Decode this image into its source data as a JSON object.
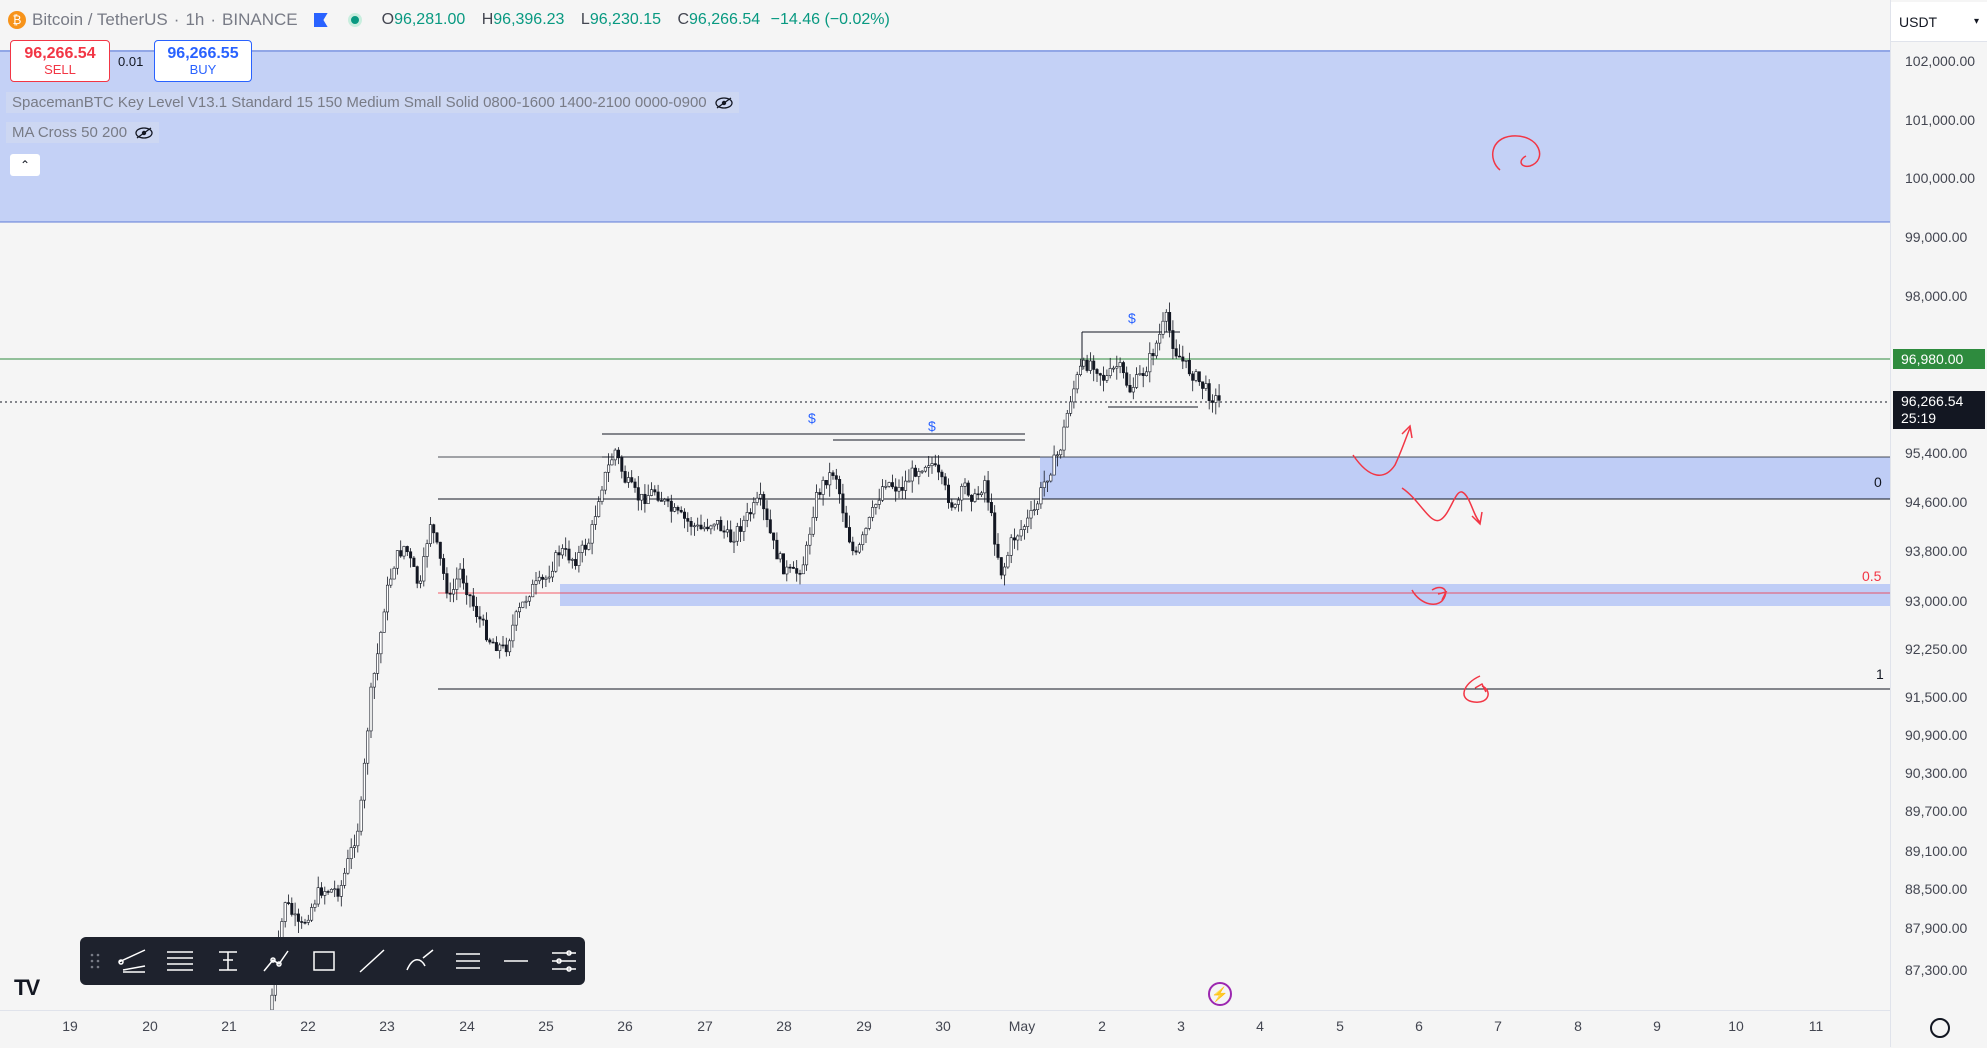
{
  "symbol": {
    "name": "Bitcoin / TetherUS",
    "interval": "1h",
    "exchange": "BINANCE",
    "icon": "bitcoin-icon"
  },
  "ohlc": {
    "o_label": "O",
    "o": "96,281.00",
    "h_label": "H",
    "h": "96,396.23",
    "l_label": "L",
    "l": "96,230.15",
    "c_label": "C",
    "c": "96,266.54",
    "change": "−14.46 (−0.02%)"
  },
  "trading": {
    "sell_price": "96,266.54",
    "sell_label": "SELL",
    "spread": "0.01",
    "buy_price": "96,266.55",
    "buy_label": "BUY"
  },
  "indicators": [
    {
      "label": "SpacemanBTC Key Level V13.1 Standard 15 150 Medium Small Solid 0800-1600 1400-2100 0000-0900"
    },
    {
      "label": "MA Cross 50 200"
    }
  ],
  "currency": "USDT",
  "price_ticks": [
    "102,000.00",
    "101,000.00",
    "100,000.00",
    "99,000.00",
    "98,000.00",
    "95,400.00",
    "94,600.00",
    "93,800.00",
    "93,000.00",
    "92,250.00",
    "91,500.00",
    "90,900.00",
    "90,300.00",
    "89,700.00",
    "89,100.00",
    "88,500.00",
    "87,900.00",
    "87,300.00"
  ],
  "price_tags": {
    "level": "96,980.00",
    "current": "96,266.54",
    "countdown": "25:19"
  },
  "time_ticks": [
    "19",
    "20",
    "21",
    "22",
    "23",
    "24",
    "25",
    "26",
    "27",
    "28",
    "29",
    "30",
    "May",
    "2",
    "3",
    "4",
    "5",
    "6",
    "7",
    "8",
    "9",
    "10",
    "11"
  ],
  "fib_labels": {
    "zero": "0",
    "half": "0.5",
    "one": "1"
  },
  "liquidity_marks": [
    "$",
    "$",
    "$"
  ],
  "colors": {
    "up": "#089981",
    "down": "#f23645",
    "zone": "#bfcdf6",
    "level_line": "#2e8b3e",
    "drawing": "#f23645"
  },
  "toolbar_icons": [
    "drag-handle-icon",
    "pitchfork-icon",
    "parallel-channel-icon",
    "fib-retracement-icon",
    "path-icon",
    "rectangle-icon",
    "trend-line-icon",
    "curve-icon",
    "regression-icon",
    "horizontal-line-icon",
    "settings-lines-icon"
  ],
  "logo": "TV"
}
